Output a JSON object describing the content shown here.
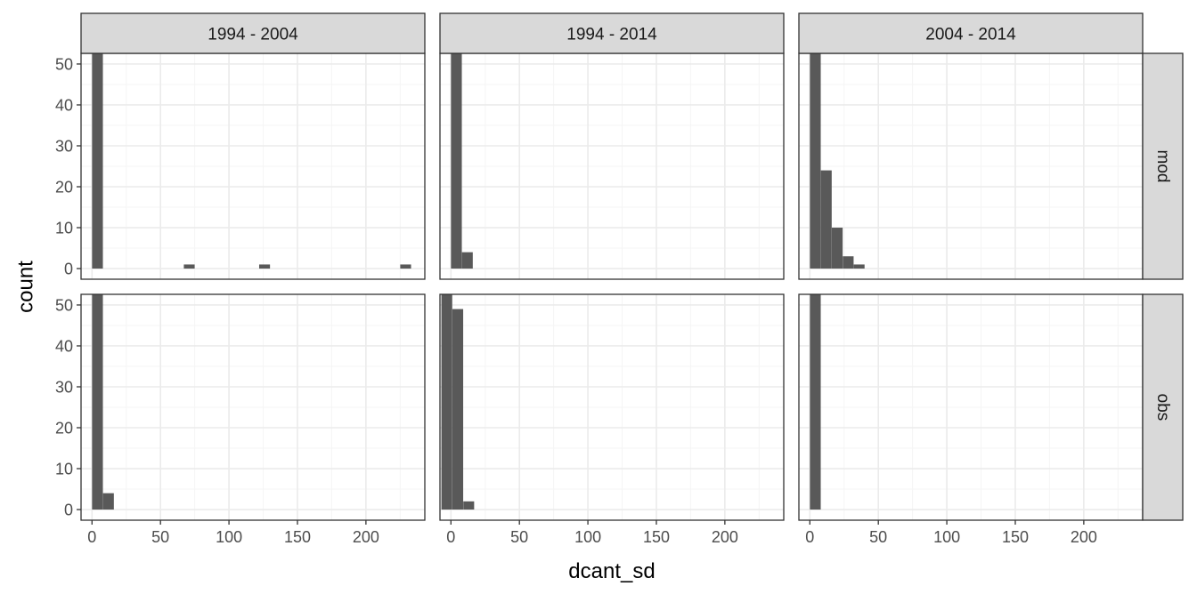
{
  "chart_data": {
    "type": "bar",
    "subtype": "faceted-histogram",
    "xlabel": "dcant_sd",
    "ylabel": "count",
    "xlim": [
      -8,
      243
    ],
    "ylim": [
      -2.6,
      52.6
    ],
    "x_ticks": [
      0,
      50,
      100,
      150,
      200
    ],
    "y_ticks": [
      0,
      10,
      20,
      30,
      40,
      50
    ],
    "bin_width": 7.9,
    "grid": true,
    "theme": "bw",
    "colors": {
      "bar": "#595959",
      "strip_fill": "#d9d9d9",
      "strip_border": "#333333",
      "panel_border": "#333333",
      "grid_major": "#ebebeb",
      "grid_minor": "#f5f5f5"
    },
    "col_facets": [
      "1994 - 2004",
      "1994 - 2014",
      "2004 - 2014"
    ],
    "row_facets": [
      "mod",
      "obs"
    ],
    "panels": [
      {
        "col": "1994 - 2004",
        "row": "mod",
        "bins": [
          {
            "x": 4,
            "count": 53
          },
          {
            "x": 71,
            "count": 1
          },
          {
            "x": 126,
            "count": 1
          },
          {
            "x": 229,
            "count": 1
          }
        ]
      },
      {
        "col": "1994 - 2014",
        "row": "mod",
        "bins": [
          {
            "x": 4,
            "count": 53
          },
          {
            "x": 12,
            "count": 4
          }
        ]
      },
      {
        "col": "2004 - 2014",
        "row": "mod",
        "bins": [
          {
            "x": 4,
            "count": 53
          },
          {
            "x": 12,
            "count": 24
          },
          {
            "x": 20,
            "count": 10
          },
          {
            "x": 28,
            "count": 3
          },
          {
            "x": 36,
            "count": 1
          }
        ]
      },
      {
        "col": "1994 - 2004",
        "row": "obs",
        "bins": [
          {
            "x": 4,
            "count": 53
          },
          {
            "x": 12,
            "count": 4
          }
        ]
      },
      {
        "col": "1994 - 2014",
        "row": "obs",
        "bins": [
          {
            "x": -3,
            "count": 53
          },
          {
            "x": 5,
            "count": 49
          },
          {
            "x": 13,
            "count": 2
          }
        ]
      },
      {
        "col": "2004 - 2014",
        "row": "obs",
        "bins": [
          {
            "x": 4,
            "count": 53
          }
        ]
      }
    ]
  }
}
